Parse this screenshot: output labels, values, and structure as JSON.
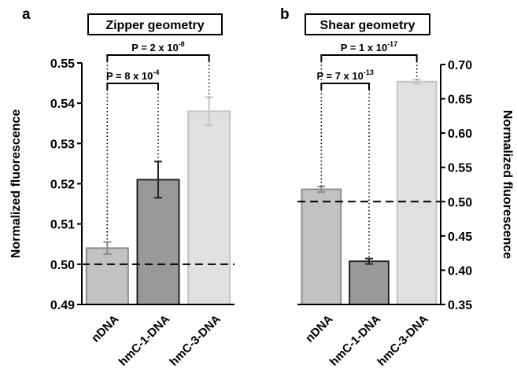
{
  "chart_data": [
    {
      "type": "bar",
      "panel_label": "a",
      "title": "Zipper geometry",
      "y_label": "Normalized fluorescence",
      "y_axis_side": "left",
      "categories": [
        "nDNA",
        "hmC-1-DNA",
        "hmC-3-DNA"
      ],
      "values": [
        0.504,
        0.521,
        0.538
      ],
      "errors": [
        0.0015,
        0.0045,
        0.0035
      ],
      "colors": [
        "#c2c2c2",
        "#999999",
        "#e0e0e0"
      ],
      "edge_colors": [
        "#8c8c8c",
        "#222222",
        "#c4c4c4"
      ],
      "ylim": [
        0.49,
        0.55
      ],
      "yticks": [
        0.49,
        {
          "value": 0.5,
          "label": "0.50"
        },
        0.51,
        0.52,
        0.53,
        0.54,
        0.55
      ],
      "reference_line": 0.5,
      "annotations": [
        {
          "text": "P = 2 x 10",
          "exponent": "-8"
        },
        {
          "text": "P = 8 x 10",
          "exponent": "-4"
        }
      ]
    },
    {
      "type": "bar",
      "panel_label": "b",
      "title": "Shear geometry",
      "y_label": "Normalized fluorescence",
      "y_axis_side": "right",
      "categories": [
        "nDNA",
        "hmC-1-DNA",
        "hmC-3-DNA"
      ],
      "values": [
        0.518,
        0.413,
        0.675
      ],
      "errors": [
        0.004,
        0.004,
        0.003
      ],
      "colors": [
        "#c2c2c2",
        "#999999",
        "#e0e0e0"
      ],
      "edge_colors": [
        "#8c8c8c",
        "#222222",
        "#c4c4c4"
      ],
      "ylim": [
        0.35,
        0.7
      ],
      "yticks": [
        0.35,
        {
          "value": 0.4,
          "label": "0.40"
        },
        0.45,
        {
          "value": 0.5,
          "label": "0.50"
        },
        0.55,
        {
          "value": 0.6,
          "label": "0.60"
        },
        0.65,
        {
          "value": 0.7,
          "label": "0.70"
        }
      ],
      "reference_line": 0.5,
      "annotations": [
        {
          "text": "P = 1 x 10",
          "exponent": "-17"
        },
        {
          "text": "P = 7 x 10",
          "exponent": "-13"
        }
      ]
    }
  ]
}
